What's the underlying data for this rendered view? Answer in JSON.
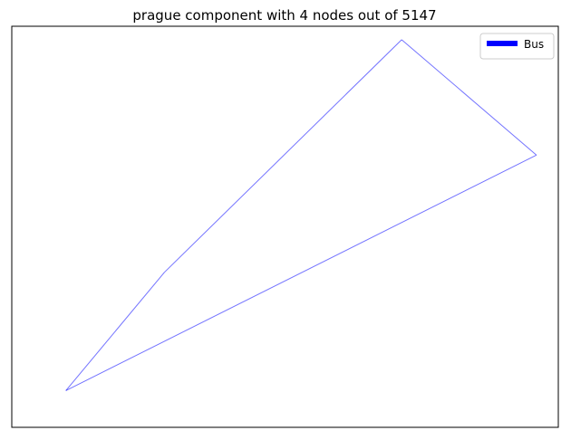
{
  "chart_data": {
    "type": "line",
    "title": "prague component with 4 nodes out of 5147",
    "xlabel": "",
    "ylabel": "",
    "axes_visible": false,
    "grid": false,
    "legend_position": "top-right",
    "legend": [
      {
        "label": "Bus",
        "color": "#0000ff"
      }
    ],
    "series": [
      {
        "name": "Bus",
        "color": "#0000ff",
        "edges": [
          [
            [
              52,
              36
            ],
            [
              150,
              158
            ]
          ],
          [
            [
              150,
              158
            ],
            [
              386,
              398
            ]
          ],
          [
            [
              386,
              398
            ],
            [
              520,
              279
            ]
          ],
          [
            [
              520,
              279
            ],
            [
              52,
              36
            ]
          ]
        ]
      }
    ]
  }
}
